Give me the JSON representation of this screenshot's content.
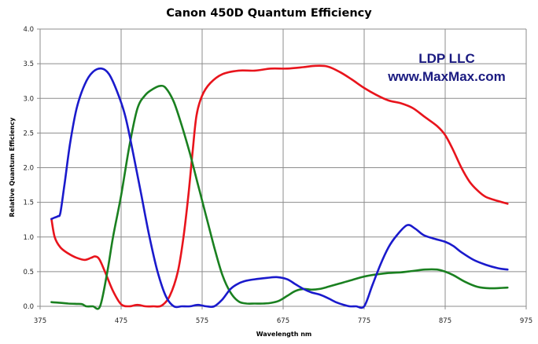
{
  "chart_data": {
    "type": "line",
    "title": "Canon 450D Quantum Efficiency",
    "xlabel": "Wavelength nm",
    "ylabel": "Relative Quantum Efficiency",
    "xlim": [
      375,
      975
    ],
    "ylim": [
      0,
      4.0
    ],
    "x_ticks": [
      375,
      475,
      575,
      675,
      775,
      875,
      975
    ],
    "y_ticks": [
      0,
      0.5,
      1.0,
      1.5,
      2.0,
      2.5,
      3.0,
      3.5,
      4.0
    ],
    "x_tick_labels": [
      "375",
      "475",
      "575",
      "675",
      "775",
      "875",
      "975"
    ],
    "y_tick_labels": [
      "0.0",
      "0.5",
      "1.0",
      "1.5",
      "2.0",
      "2.5",
      "3.0",
      "3.5",
      "4.0"
    ],
    "grid": true,
    "legend": "none",
    "annotations": [
      "LDP LLC",
      "www.MaxMax.com"
    ],
    "series": [
      {
        "name": "Red",
        "color": "#e8141c",
        "x": [
          389,
          393,
          400,
          410,
          420,
          430,
          438,
          443,
          448,
          455,
          465,
          475,
          485,
          495,
          505,
          515,
          525,
          535,
          545,
          552,
          558,
          563,
          568,
          575,
          585,
          600,
          620,
          640,
          660,
          680,
          700,
          715,
          730,
          745,
          760,
          775,
          790,
          805,
          820,
          835,
          850,
          865,
          875,
          885,
          895,
          905,
          915,
          925,
          940,
          952
        ],
        "y": [
          1.26,
          1.0,
          0.85,
          0.76,
          0.7,
          0.67,
          0.7,
          0.72,
          0.68,
          0.5,
          0.22,
          0.03,
          0.0,
          0.02,
          0.0,
          0.0,
          0.01,
          0.15,
          0.5,
          1.0,
          1.6,
          2.2,
          2.75,
          3.04,
          3.22,
          3.35,
          3.4,
          3.4,
          3.43,
          3.43,
          3.45,
          3.47,
          3.46,
          3.38,
          3.27,
          3.15,
          3.05,
          2.97,
          2.93,
          2.86,
          2.73,
          2.6,
          2.47,
          2.25,
          2.0,
          1.8,
          1.67,
          1.58,
          1.52,
          1.48
        ]
      },
      {
        "name": "Green",
        "color": "#1a8020",
        "x": [
          389,
          400,
          410,
          420,
          427,
          432,
          440,
          449,
          458,
          465,
          475,
          485,
          495,
          505,
          515,
          523,
          530,
          540,
          550,
          560,
          570,
          580,
          590,
          600,
          610,
          620,
          630,
          640,
          650,
          660,
          670,
          680,
          690,
          700,
          710,
          720,
          730,
          745,
          760,
          775,
          790,
          805,
          820,
          835,
          850,
          865,
          875,
          885,
          900,
          915,
          930,
          952
        ],
        "y": [
          0.06,
          0.05,
          0.04,
          0.035,
          0.03,
          0.0,
          0.0,
          0.0,
          0.5,
          1.0,
          1.6,
          2.3,
          2.85,
          3.05,
          3.14,
          3.18,
          3.15,
          2.95,
          2.6,
          2.2,
          1.75,
          1.3,
          0.85,
          0.45,
          0.2,
          0.07,
          0.04,
          0.04,
          0.04,
          0.05,
          0.08,
          0.15,
          0.22,
          0.25,
          0.24,
          0.25,
          0.28,
          0.33,
          0.38,
          0.43,
          0.46,
          0.48,
          0.49,
          0.51,
          0.53,
          0.53,
          0.5,
          0.45,
          0.35,
          0.28,
          0.26,
          0.27
        ]
      },
      {
        "name": "Blue",
        "color": "#1a1acc",
        "x": [
          389,
          393,
          397,
          400,
          405,
          412,
          420,
          430,
          440,
          451,
          460,
          470,
          480,
          490,
          500,
          510,
          520,
          530,
          540,
          550,
          560,
          570,
          580,
          590,
          600,
          610,
          620,
          630,
          640,
          655,
          668,
          680,
          690,
          700,
          710,
          720,
          730,
          740,
          750,
          757,
          765,
          775,
          785,
          795,
          805,
          815,
          828,
          838,
          848,
          860,
          875,
          885,
          895,
          910,
          925,
          940,
          952
        ],
        "y": [
          1.26,
          1.28,
          1.3,
          1.35,
          1.75,
          2.35,
          2.85,
          3.2,
          3.38,
          3.43,
          3.35,
          3.1,
          2.75,
          2.2,
          1.6,
          1.0,
          0.5,
          0.15,
          0.0,
          0.0,
          0.0,
          0.02,
          0.0,
          0.0,
          0.1,
          0.25,
          0.33,
          0.37,
          0.39,
          0.41,
          0.42,
          0.39,
          0.32,
          0.25,
          0.2,
          0.17,
          0.12,
          0.06,
          0.02,
          0.0,
          0.0,
          0.0,
          0.3,
          0.6,
          0.85,
          1.02,
          1.17,
          1.12,
          1.03,
          0.98,
          0.93,
          0.87,
          0.78,
          0.67,
          0.6,
          0.55,
          0.53
        ]
      }
    ]
  }
}
